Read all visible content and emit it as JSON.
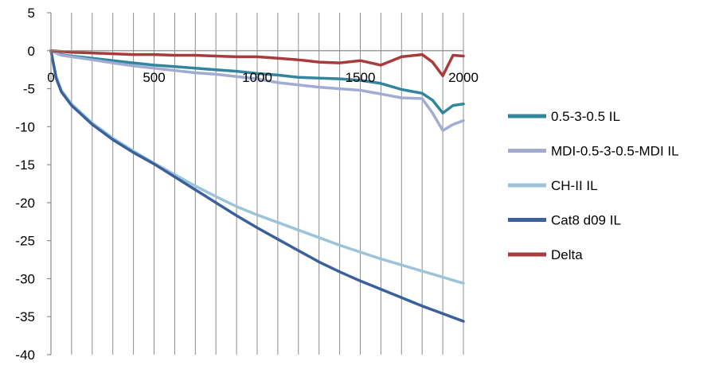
{
  "chart_data": {
    "type": "line",
    "title": "",
    "xlabel": "",
    "ylabel": "",
    "xlim": [
      0,
      2000
    ],
    "ylim": [
      -40,
      5
    ],
    "x_ticks": [
      0,
      500,
      1000,
      1500,
      2000
    ],
    "x_tick_labels": [
      "0",
      "500",
      "1000",
      "1500",
      "2000"
    ],
    "x_minor_step": 100,
    "y_ticks": [
      5,
      0,
      -5,
      -10,
      -15,
      -20,
      -25,
      -30,
      -35,
      -40
    ],
    "y_tick_labels": [
      "5",
      "0",
      "-5",
      "-10",
      "-15",
      "-20",
      "-25",
      "-30",
      "-35",
      "-40"
    ],
    "grid": "vertical",
    "legend_position": "right",
    "x": [
      0,
      25,
      50,
      100,
      200,
      300,
      400,
      500,
      600,
      700,
      800,
      900,
      1000,
      1100,
      1200,
      1300,
      1400,
      1500,
      1600,
      1700,
      1800,
      1850,
      1900,
      1950,
      2000
    ],
    "series": [
      {
        "name": "0.5-3-0.5 IL",
        "color": "#31859c",
        "values": [
          0,
          -0.3,
          -0.5,
          -0.7,
          -1.0,
          -1.3,
          -1.6,
          -1.9,
          -2.1,
          -2.3,
          -2.5,
          -2.7,
          -3.0,
          -3.2,
          -3.5,
          -3.6,
          -3.7,
          -3.9,
          -4.3,
          -5.1,
          -5.6,
          -6.5,
          -8.2,
          -7.2,
          -7.0
        ]
      },
      {
        "name": "MDI-0.5-3-0.5-MDI IL",
        "color": "#a0acd2",
        "values": [
          0,
          -0.3,
          -0.6,
          -0.8,
          -1.2,
          -1.6,
          -2.0,
          -2.3,
          -2.6,
          -2.9,
          -3.1,
          -3.4,
          -3.7,
          -4.2,
          -4.5,
          -4.8,
          -5.0,
          -5.2,
          -5.7,
          -6.2,
          -6.3,
          -8.2,
          -10.5,
          -9.7,
          -9.2
        ]
      },
      {
        "name": "CH-II IL",
        "color": "#9cc3d8",
        "values": [
          0,
          -3.4,
          -5.2,
          -7.0,
          -9.5,
          -11.5,
          -13.2,
          -14.8,
          -16.3,
          -17.8,
          -19.2,
          -20.5,
          -21.6,
          -22.6,
          -23.6,
          -24.6,
          -25.6,
          -26.5,
          -27.4,
          -28.2,
          -29.0,
          -29.4,
          -29.8,
          -30.2,
          -30.6
        ]
      },
      {
        "name": "Cat8 d09 IL",
        "color": "#3a619c",
        "values": [
          0,
          -3.6,
          -5.4,
          -7.2,
          -9.7,
          -11.7,
          -13.4,
          -14.9,
          -16.6,
          -18.3,
          -20.0,
          -21.7,
          -23.3,
          -24.8,
          -26.3,
          -27.8,
          -29.1,
          -30.3,
          -31.4,
          -32.5,
          -33.6,
          -34.1,
          -34.6,
          -35.1,
          -35.6
        ]
      },
      {
        "name": "Delta",
        "color": "#a83c3c",
        "values": [
          0,
          -0.05,
          -0.1,
          -0.2,
          -0.3,
          -0.4,
          -0.5,
          -0.5,
          -0.6,
          -0.6,
          -0.7,
          -0.8,
          -0.8,
          -1.0,
          -1.2,
          -1.5,
          -1.6,
          -1.3,
          -1.9,
          -0.8,
          -0.5,
          -1.5,
          -3.3,
          -0.6,
          -0.7
        ]
      }
    ]
  }
}
